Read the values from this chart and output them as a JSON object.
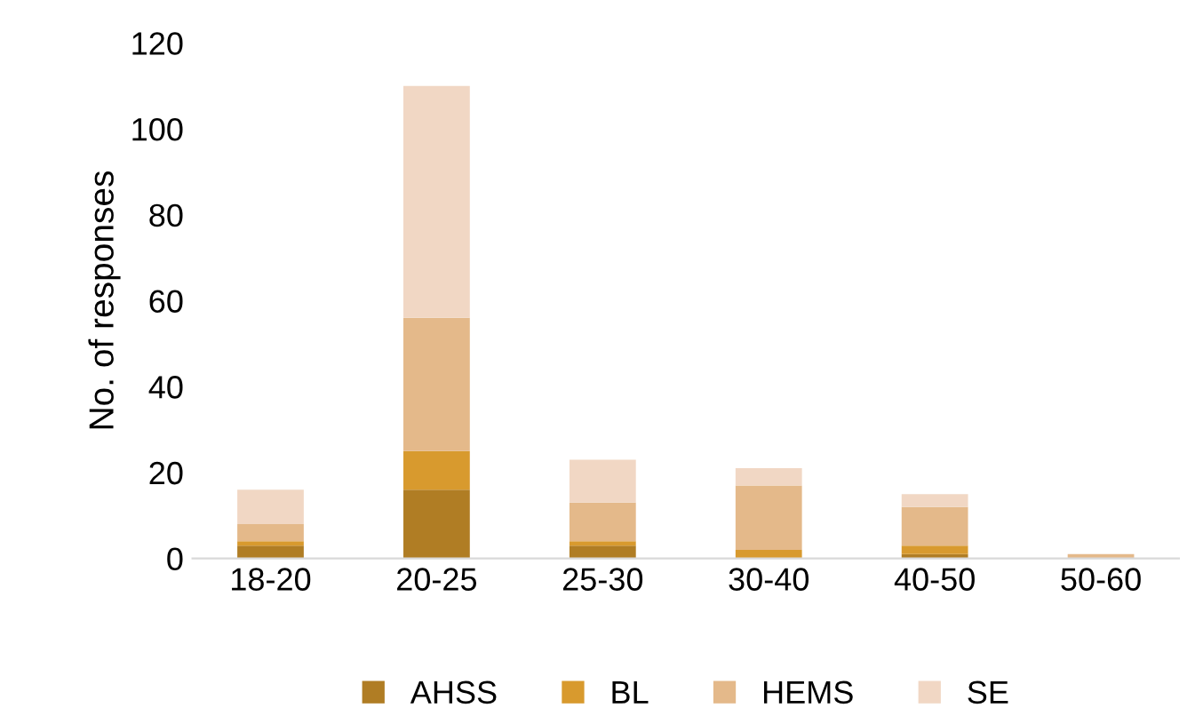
{
  "chart_data": {
    "type": "bar",
    "stacked": true,
    "ylabel": "No. of responses",
    "categories": [
      "18-20",
      "20-25",
      "25-30",
      "30-40",
      "40-50",
      "50-60"
    ],
    "series": [
      {
        "name": "AHSS",
        "color": "#b07d24",
        "values": [
          3,
          16,
          3,
          0,
          1,
          0
        ]
      },
      {
        "name": "BL",
        "color": "#d89a2e",
        "values": [
          1,
          9,
          1,
          2,
          2,
          0
        ]
      },
      {
        "name": "HEMS",
        "color": "#e4b98a",
        "values": [
          4,
          31,
          9,
          15,
          9,
          1
        ]
      },
      {
        "name": "SE",
        "color": "#f1d7c4",
        "values": [
          8,
          54,
          10,
          4,
          3,
          0
        ]
      }
    ],
    "ylim": [
      0,
      120
    ],
    "yticks": [
      0,
      20,
      40,
      60,
      80,
      100,
      120
    ],
    "grid": false,
    "legend": "bottom"
  }
}
